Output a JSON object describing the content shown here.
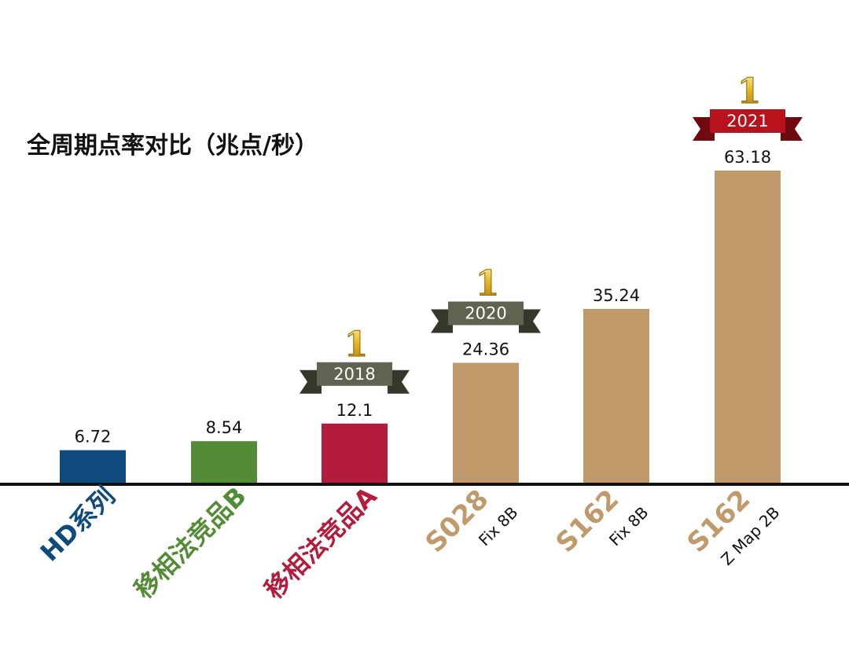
{
  "chart_data": {
    "type": "bar",
    "title": "全周期点率对比（兆点/秒）",
    "categories": [
      {
        "name": "HD系列",
        "sub": ""
      },
      {
        "name": "移相法竞品B",
        "sub": ""
      },
      {
        "name": "移相法竞品A",
        "sub": ""
      },
      {
        "name": "S028",
        "sub": "Fix 8B"
      },
      {
        "name": "S162",
        "sub": "Fix 8B"
      },
      {
        "name": "S162",
        "sub": "Z Map 2B"
      }
    ],
    "values": [
      6.72,
      8.54,
      12.1,
      24.36,
      35.24,
      63.18
    ],
    "value_labels": [
      "6.72",
      "8.54",
      "12.1",
      "24.36",
      "35.24",
      "63.18"
    ],
    "colors": [
      "#0e4a7c",
      "#548b36",
      "#b31c3c",
      "#c19a6b",
      "#c19a6b",
      "#c19a6b"
    ],
    "badges": [
      {
        "index": 2,
        "rank": "1",
        "year": "2018",
        "ribbon_color": "#5e6450"
      },
      {
        "index": 3,
        "rank": "1",
        "year": "2020",
        "ribbon_color": "#5e6450"
      },
      {
        "index": 5,
        "rank": "1",
        "year": "2021",
        "ribbon_color": "#b8121c"
      }
    ],
    "ylim": [
      0,
      63.18
    ],
    "grid": false,
    "legend": "none"
  }
}
